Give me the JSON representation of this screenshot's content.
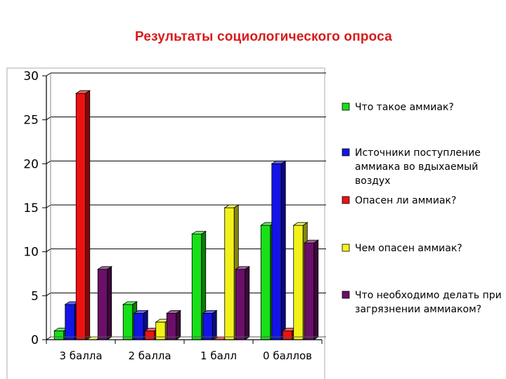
{
  "chart_data": {
    "type": "bar",
    "title": "Результаты социологического опроса",
    "categories": [
      "3 балла",
      "2 балла",
      "1 балл",
      "0 баллов"
    ],
    "ylim": [
      0,
      30
    ],
    "yticks": [
      0,
      5,
      10,
      15,
      20,
      25,
      30
    ],
    "grid": true,
    "legend_position": "right",
    "series": [
      {
        "name": "Что такое аммиак?",
        "color": "#18e018",
        "values": [
          1,
          4,
          12,
          13
        ]
      },
      {
        "name": "Источники поступление аммиака во вдыхаемый воздух",
        "color": "#1414e6",
        "values": [
          4,
          3,
          3,
          20
        ]
      },
      {
        "name": "Опасен ли аммиак?",
        "color": "#ee1111",
        "values": [
          28,
          1,
          0,
          1
        ]
      },
      {
        "name": "Чем опасен аммиак?",
        "color": "#f2f21a",
        "values": [
          0,
          2,
          15,
          13
        ]
      },
      {
        "name": "Что необходимо делать при загрязнении аммиаком?",
        "color": "#6a0f6a",
        "values": [
          8,
          3,
          8,
          11
        ]
      }
    ]
  }
}
